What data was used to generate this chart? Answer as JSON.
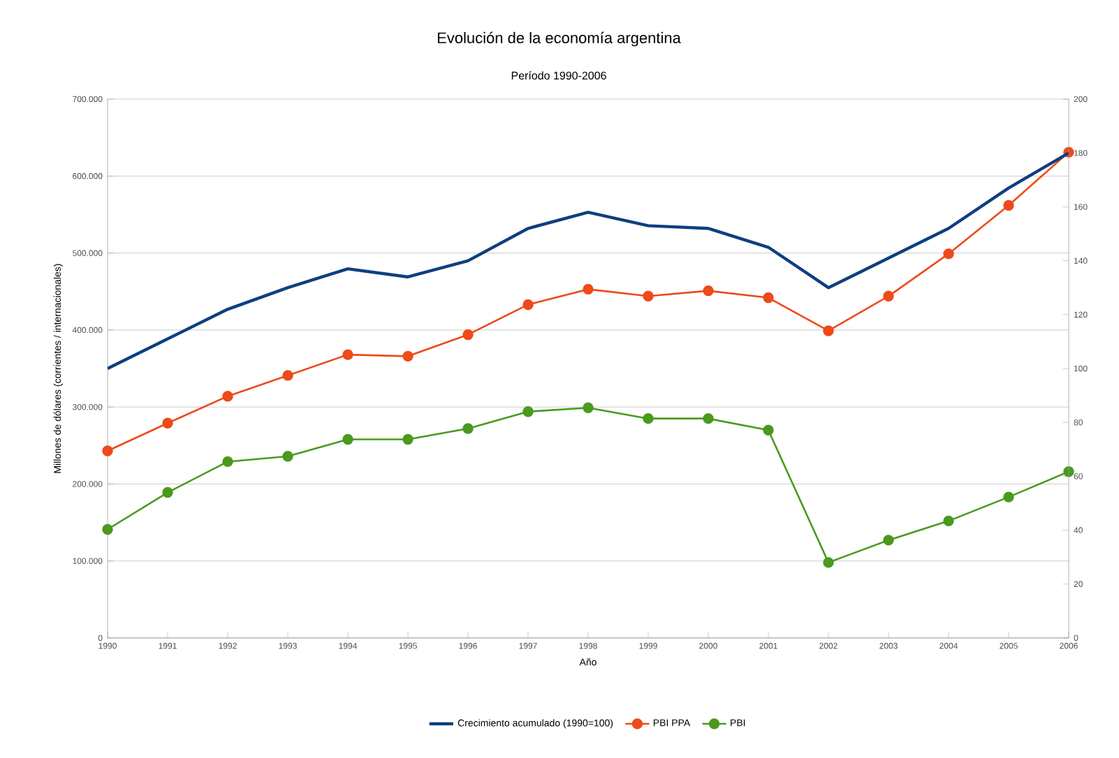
{
  "chart_data": {
    "type": "line",
    "title": "Evolución de la economía argentina",
    "subtitle": "Período 1990-2006",
    "xlabel": "Año",
    "ylabel": "Millones de dólares (corrientes / internacionales)",
    "categories": [
      "1990",
      "1991",
      "1992",
      "1993",
      "1994",
      "1995",
      "1996",
      "1997",
      "1998",
      "1999",
      "2000",
      "2001",
      "2002",
      "2003",
      "2004",
      "2005",
      "2006"
    ],
    "series": [
      {
        "name": "Crecimiento acumulado (1990=100)",
        "color": "#0e3f7f",
        "axis": "y2",
        "marker": "none",
        "values": [
          100,
          111,
          122,
          130,
          137,
          134,
          140,
          152,
          158,
          153,
          152,
          145,
          130,
          141,
          152,
          167,
          180
        ]
      },
      {
        "name": "PBI PPA",
        "color": "#ee4a1a",
        "marker": "circle",
        "values": [
          243000,
          279000,
          314000,
          341000,
          368000,
          366000,
          394000,
          433000,
          453000,
          444000,
          451000,
          442000,
          399000,
          444000,
          499000,
          562000,
          631000
        ]
      },
      {
        "name": "PBI",
        "color": "#4a9a1e",
        "marker": "circle",
        "values": [
          141000,
          189000,
          229000,
          236000,
          258000,
          258000,
          272000,
          294000,
          299000,
          285000,
          285000,
          270000,
          98000,
          127000,
          152000,
          183000,
          216000
        ]
      }
    ],
    "ylim": [
      0,
      700000
    ],
    "yticks": [
      {
        "value": 0,
        "label": "0"
      },
      {
        "value": 100000,
        "label": "100.000"
      },
      {
        "value": 200000,
        "label": "200.000"
      },
      {
        "value": 300000,
        "label": "300.000"
      },
      {
        "value": 400000,
        "label": "400.000"
      },
      {
        "value": 500000,
        "label": "500.000"
      },
      {
        "value": 600000,
        "label": "600.000"
      },
      {
        "value": 700000,
        "label": "700.000"
      }
    ],
    "y2lim": [
      0,
      200
    ],
    "y2ticks": [
      0,
      20,
      40,
      60,
      80,
      100,
      120,
      140,
      160,
      180,
      200
    ],
    "grid": "y",
    "legend": "bottom"
  }
}
